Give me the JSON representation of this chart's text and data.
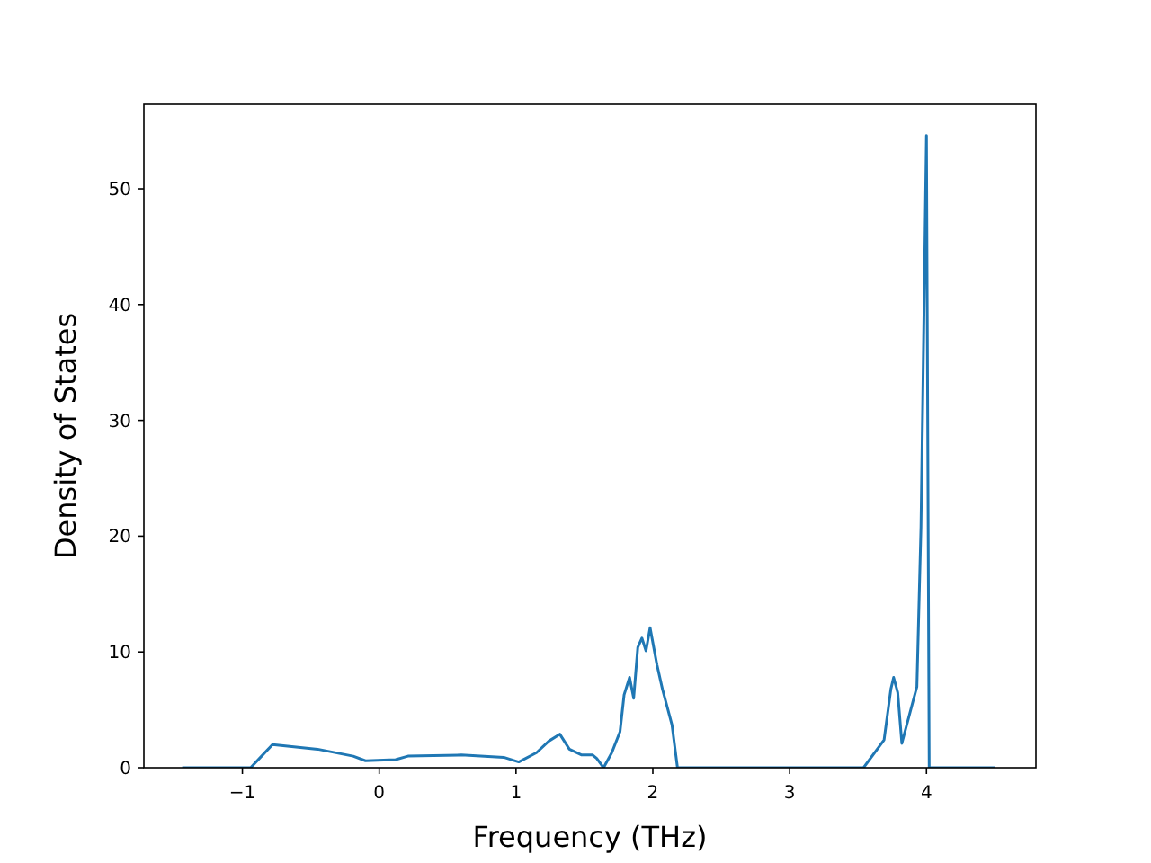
{
  "chart_data": {
    "type": "line",
    "xlabel": "Frequency (THz)",
    "ylabel": "Density of States",
    "xlim": [
      -1.72,
      4.8
    ],
    "ylim": [
      0,
      57.3
    ],
    "xticks": [
      {
        "value": -1,
        "label": "−1"
      },
      0,
      1,
      2,
      3,
      4
    ],
    "yticks": [
      0,
      10,
      20,
      30,
      40,
      50
    ],
    "grid": false,
    "series": [
      {
        "color": "#1f77b4",
        "x": [
          -1.44,
          -0.94,
          -0.86,
          -0.78,
          -0.45,
          -0.19,
          -0.1,
          0.12,
          0.21,
          0.6,
          0.91,
          1.02,
          1.15,
          1.24,
          1.32,
          1.39,
          1.48,
          1.56,
          1.59,
          1.64,
          1.7,
          1.76,
          1.79,
          1.83,
          1.86,
          1.89,
          1.92,
          1.95,
          1.98,
          2.03,
          2.07,
          2.14,
          2.18,
          3.54,
          3.69,
          3.74,
          3.76,
          3.79,
          3.82,
          3.93,
          3.96,
          4.0,
          4.02,
          4.5
        ],
        "values": [
          0,
          0,
          1.0,
          2.0,
          1.6,
          1.0,
          0.6,
          0.7,
          1.0,
          1.1,
          0.9,
          0.5,
          1.3,
          2.3,
          2.9,
          1.6,
          1.1,
          1.1,
          0.8,
          0,
          1.3,
          3.1,
          6.3,
          7.8,
          6.0,
          10.4,
          11.2,
          10.1,
          12.1,
          8.9,
          6.8,
          3.7,
          0,
          0,
          2.4,
          6.8,
          7.8,
          6.5,
          2.1,
          7.0,
          20.8,
          54.6,
          0,
          0
        ]
      }
    ]
  }
}
